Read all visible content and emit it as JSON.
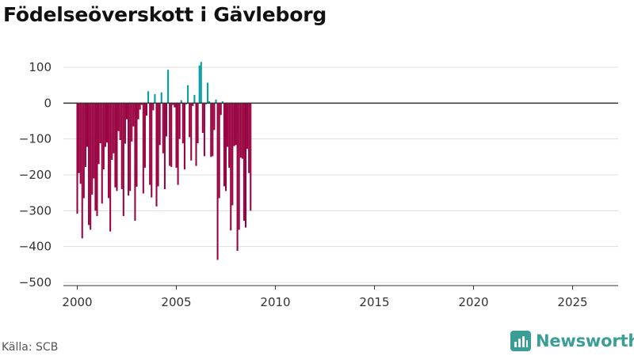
{
  "page": {
    "title": "Födelseöverskott i Gävleborg",
    "source": "Källa: SCB",
    "brand": "Newsworthy",
    "brand_icon": "newsworthy-logo-icon"
  },
  "colors": {
    "negative": "#990040",
    "positive": "#009e9e",
    "zero_line": "#333333",
    "grid": "#dddddd"
  },
  "chart_data": {
    "type": "bar",
    "title": "Födelseöverskott i Gävleborg",
    "xlabel": "",
    "ylabel": "",
    "frequency": "monthly",
    "start": "2000-01",
    "ylim": [
      -500,
      140
    ],
    "yticks": [
      100,
      0,
      -100,
      -200,
      -300,
      -400,
      -500
    ],
    "ytick_labels": [
      "100",
      "0",
      "−100",
      "−200",
      "−300",
      "−400",
      "−500"
    ],
    "xlim": [
      1999.3,
      2027.3
    ],
    "xticks": [
      2000,
      2005,
      2010,
      2015,
      2020,
      2025
    ],
    "xtick_labels": [
      "2000",
      "2005",
      "2010",
      "2015",
      "2020",
      "2025"
    ],
    "grid": true,
    "legend": "none",
    "values": [
      -308,
      -195,
      -225,
      -377,
      -265,
      -178,
      -122,
      -340,
      -353,
      -255,
      -210,
      -300,
      -315,
      -170,
      -112,
      -280,
      -185,
      -122,
      -110,
      -265,
      -358,
      -158,
      -140,
      -235,
      -245,
      -78,
      -103,
      -240,
      -315,
      -113,
      -45,
      -258,
      -245,
      -107,
      -65,
      -328,
      -233,
      -45,
      -18,
      -5,
      -252,
      -180,
      -35,
      33,
      -228,
      -263,
      -20,
      25,
      -288,
      -232,
      -117,
      30,
      -140,
      -240,
      -93,
      93,
      -175,
      -178,
      -5,
      -12,
      -180,
      -228,
      -100,
      8,
      -112,
      -185,
      -3,
      50,
      -95,
      -160,
      -8,
      23,
      -175,
      -112,
      105,
      115,
      -83,
      -148,
      -3,
      57,
      5,
      -150,
      -148,
      -75,
      10,
      -437,
      -265,
      -33,
      5,
      -232,
      -245,
      -122,
      -180,
      -355,
      -285,
      -120,
      -117,
      -412,
      -353,
      -152,
      -155,
      -328,
      -347,
      -128,
      -195,
      -300
    ]
  }
}
